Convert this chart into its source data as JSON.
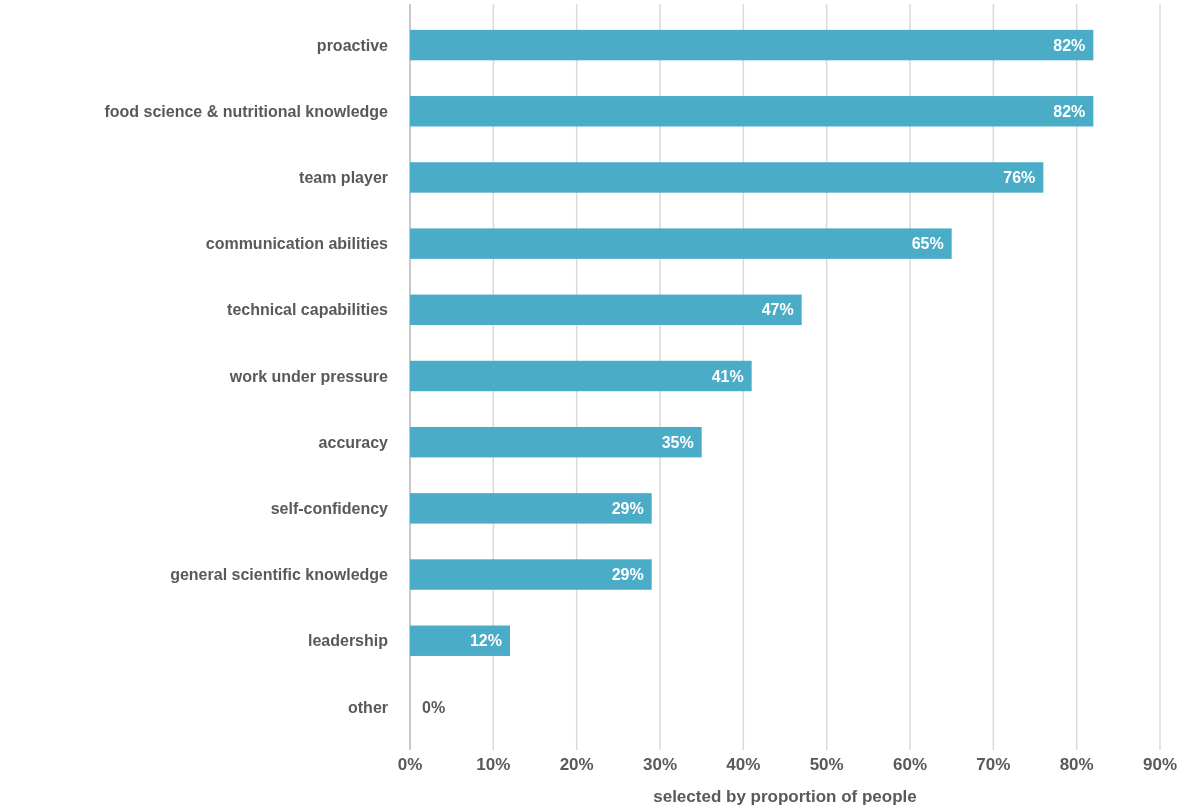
{
  "chart_data": {
    "type": "bar",
    "orientation": "horizontal",
    "xlabel": "selected by proportion of people",
    "categories": [
      "proactive",
      "food science & nutritional knowledge",
      "team player",
      "communication abilities",
      "technical capabilities",
      "work under pressure",
      "accuracy",
      "self-confidency",
      "general scientific knowledge",
      "leadership",
      "other"
    ],
    "values": [
      82,
      82,
      76,
      65,
      47,
      41,
      35,
      29,
      29,
      12,
      0
    ],
    "color": "#4aacc6",
    "xlim": [
      0,
      90
    ],
    "xticks": [
      {
        "value": 0,
        "label": "0%"
      },
      {
        "value": 10,
        "label": "10%"
      },
      {
        "value": 20,
        "label": "20%"
      },
      {
        "value": 30,
        "label": "30%"
      },
      {
        "value": 40,
        "label": "40%"
      },
      {
        "value": 50,
        "label": "50%"
      },
      {
        "value": 60,
        "label": "60%"
      },
      {
        "value": 70,
        "label": "70%"
      },
      {
        "value": 80,
        "label": "80%"
      },
      {
        "value": 90,
        "label": "90%"
      }
    ],
    "grid": "x",
    "value_labels": [
      "82%",
      "82%",
      "76%",
      "65%",
      "47%",
      "41%",
      "35%",
      "29%",
      "29%",
      "12%",
      "0%"
    ]
  }
}
